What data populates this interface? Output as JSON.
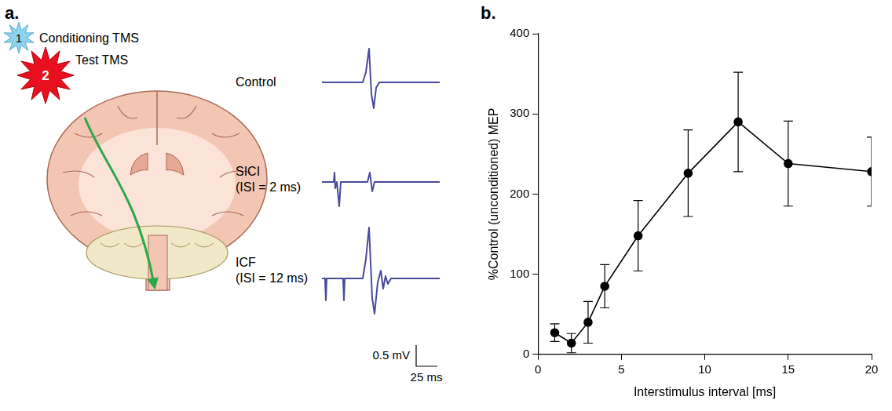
{
  "panel_a": {
    "label": "a.",
    "stimuli": [
      {
        "number": "1",
        "label": "Conditioning TMS"
      },
      {
        "number": "2",
        "label": "Test TMS"
      }
    ],
    "traces": [
      {
        "label": "Control"
      },
      {
        "label": "SICI",
        "condition": "(ISI = 2 ms)"
      },
      {
        "label": "ICF",
        "condition": "(ISI = 12 ms)"
      }
    ],
    "scale_bar": {
      "y": "0.5 mV",
      "x": "25 ms"
    }
  },
  "chart_data": {
    "panel_label": "b.",
    "type": "line",
    "x_label": "Interstimulus interval [ms]",
    "y_label": "%Control (unconditioned) MEP",
    "x": [
      1,
      2,
      3,
      4,
      6,
      9,
      12,
      15,
      20
    ],
    "values": [
      27,
      14,
      40,
      85,
      148,
      226,
      290,
      238,
      228
    ],
    "errors": [
      11,
      12,
      26,
      27,
      44,
      54,
      62,
      53,
      43
    ],
    "xlim": [
      0,
      20
    ],
    "xticks": [
      0,
      5,
      10,
      15,
      20
    ],
    "ylim": [
      0,
      400
    ],
    "yticks": [
      0,
      100,
      200,
      300,
      400
    ],
    "grid": false,
    "color": "#000000",
    "marker": "circle",
    "line_style": "solid"
  }
}
